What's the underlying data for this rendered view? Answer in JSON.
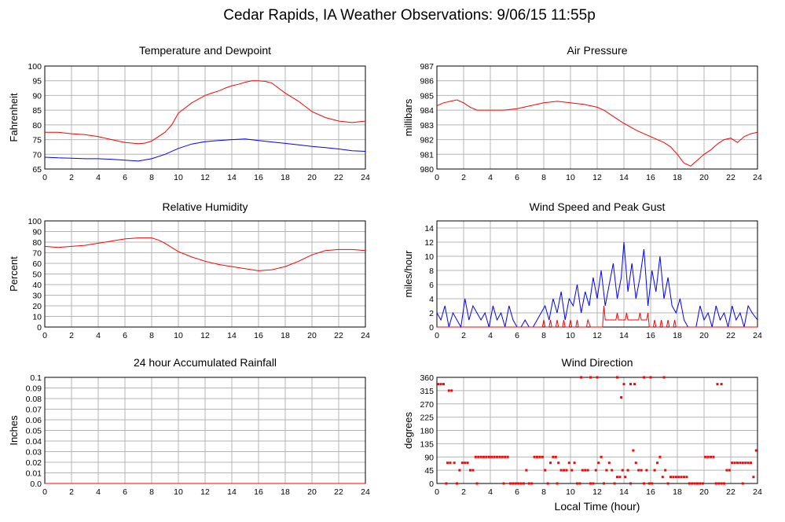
{
  "page": {
    "title": "Cedar Rapids, IA Weather Observations: 9/06/15 11:55p",
    "x_axis_label": "Local Time (hour)"
  },
  "colors": {
    "red": "#ff0000",
    "blue": "#0000ff",
    "grid": "#b4b4b4"
  },
  "chart_data": [
    {
      "id": "temp",
      "type": "line",
      "title": "Temperature and Dewpoint",
      "ylabel": "Fahrenheit",
      "xlim": [
        0,
        24
      ],
      "ylim": [
        65,
        100
      ],
      "xticks": [
        0,
        2,
        4,
        6,
        8,
        10,
        12,
        14,
        16,
        18,
        20,
        22,
        24
      ],
      "yticks": [
        65,
        70,
        75,
        80,
        85,
        90,
        95,
        100
      ],
      "grid": true,
      "series": [
        {
          "color": "#ff0000",
          "x": [
            0,
            1,
            2,
            3,
            4,
            5,
            6,
            7,
            7.5,
            8,
            8.5,
            9,
            9.5,
            10,
            11,
            12,
            12.5,
            13,
            13.5,
            14,
            14.5,
            15,
            15.5,
            16,
            16.5,
            17,
            17.5,
            18,
            19,
            20,
            21,
            22,
            23,
            24
          ],
          "y": [
            77.5,
            77.5,
            77,
            76.7,
            76,
            75,
            74,
            73.6,
            73.8,
            74.5,
            76,
            77.5,
            80,
            84,
            87.5,
            90,
            90.8,
            91.5,
            92.5,
            93.3,
            93.8,
            94.5,
            95,
            95,
            94.8,
            94.2,
            92.5,
            90.8,
            88,
            84.5,
            82.5,
            81.3,
            80.8,
            81.3
          ]
        },
        {
          "color": "#0000ff",
          "x": [
            0,
            1,
            2,
            3,
            4,
            5,
            6,
            7,
            8,
            9,
            10,
            11,
            12,
            13,
            14,
            15,
            16,
            17,
            18,
            19,
            20,
            21,
            22,
            23,
            24
          ],
          "y": [
            69,
            68.8,
            68.7,
            68.5,
            68.5,
            68.3,
            68,
            67.7,
            68.5,
            70,
            72,
            73.5,
            74.3,
            74.7,
            75,
            75.2,
            74.7,
            74.2,
            73.7,
            73.2,
            72.7,
            72.3,
            71.8,
            71.2,
            71
          ]
        }
      ]
    },
    {
      "id": "pressure",
      "type": "line",
      "title": "Air Pressure",
      "ylabel": "millibars",
      "xlim": [
        0,
        24
      ],
      "ylim": [
        980,
        987
      ],
      "xticks": [
        0,
        2,
        4,
        6,
        8,
        10,
        12,
        14,
        16,
        18,
        20,
        22,
        24
      ],
      "yticks": [
        980,
        981,
        982,
        983,
        984,
        985,
        986,
        987
      ],
      "grid": true,
      "series": [
        {
          "color": "#ff0000",
          "x": [
            0,
            0.5,
            1,
            1.5,
            2,
            2.5,
            3,
            3.5,
            4,
            5,
            6,
            7,
            8,
            9,
            10,
            11,
            12,
            12.5,
            13,
            13.5,
            14,
            15,
            16,
            16.5,
            17,
            17.5,
            18,
            18.5,
            19,
            19.5,
            20,
            20.5,
            21,
            21.5,
            22,
            22.5,
            23,
            23.5,
            24
          ],
          "y": [
            984.3,
            984.5,
            984.6,
            984.7,
            984.5,
            984.2,
            984,
            984,
            984,
            984,
            984.1,
            984.3,
            984.5,
            984.6,
            984.5,
            984.4,
            984.2,
            984,
            983.7,
            983.4,
            983.1,
            982.6,
            982.2,
            982,
            981.8,
            981.5,
            981,
            980.4,
            980.2,
            980.6,
            981,
            981.3,
            981.7,
            982,
            982.1,
            981.8,
            982.2,
            982.4,
            982.5
          ]
        }
      ]
    },
    {
      "id": "humidity",
      "type": "line",
      "title": "Relative Humidity",
      "ylabel": "Percent",
      "xlim": [
        0,
        24
      ],
      "ylim": [
        0,
        100
      ],
      "xticks": [
        0,
        2,
        4,
        6,
        8,
        10,
        12,
        14,
        16,
        18,
        20,
        22,
        24
      ],
      "yticks": [
        0,
        10,
        20,
        30,
        40,
        50,
        60,
        70,
        80,
        90,
        100
      ],
      "grid": true,
      "series": [
        {
          "color": "#ff0000",
          "x": [
            0,
            1,
            2,
            3,
            4,
            5,
            6,
            7,
            8,
            8.5,
            9,
            9.5,
            10,
            11,
            12,
            13,
            14,
            15,
            16,
            17,
            18,
            19,
            20,
            21,
            22,
            23,
            24
          ],
          "y": [
            76,
            75,
            76,
            77,
            79,
            81,
            83,
            84,
            84,
            82,
            79,
            75,
            71,
            66,
            62,
            59,
            57,
            55,
            53,
            54,
            57,
            62,
            68,
            72,
            73,
            73,
            72
          ]
        }
      ]
    },
    {
      "id": "wind",
      "type": "line",
      "title": "Wind Speed and Peak Gust",
      "ylabel": "miles/hour",
      "xlim": [
        0,
        24
      ],
      "ylim": [
        0,
        15
      ],
      "xticks": [
        0,
        2,
        4,
        6,
        8,
        10,
        12,
        14,
        16,
        18,
        20,
        22,
        24
      ],
      "yticks": [
        0,
        2,
        4,
        6,
        8,
        10,
        12,
        14
      ],
      "grid": true,
      "series": [
        {
          "color": "#0000ff",
          "x": [
            0,
            0.3,
            0.6,
            0.9,
            1.2,
            1.5,
            1.8,
            2.1,
            2.4,
            2.7,
            3,
            3.3,
            3.6,
            3.9,
            4.2,
            4.5,
            4.8,
            5.1,
            5.4,
            5.7,
            6,
            6.3,
            6.6,
            6.9,
            7.2,
            7.5,
            7.8,
            8.1,
            8.4,
            8.7,
            9,
            9.3,
            9.6,
            9.9,
            10.2,
            10.5,
            10.8,
            11.1,
            11.4,
            11.7,
            12,
            12.3,
            12.6,
            12.9,
            13.2,
            13.5,
            13.8,
            14,
            14.3,
            14.6,
            14.9,
            15.2,
            15.5,
            15.8,
            16.1,
            16.4,
            16.7,
            17,
            17.3,
            17.6,
            17.9,
            18.2,
            18.5,
            18.8,
            19.1,
            19.4,
            19.7,
            20,
            20.3,
            20.6,
            20.9,
            21.2,
            21.5,
            21.8,
            22.1,
            22.4,
            22.7,
            23,
            23.3,
            23.6,
            24
          ],
          "y": [
            2,
            1,
            3,
            0,
            2,
            1,
            0,
            4,
            1,
            3,
            2,
            1,
            2,
            0,
            3,
            1,
            2,
            0,
            3,
            1,
            0,
            0,
            1,
            0,
            0,
            1,
            2,
            3,
            1,
            4,
            2,
            5,
            1,
            4,
            3,
            6,
            2,
            5,
            3,
            7,
            4,
            8,
            3,
            6,
            9,
            4,
            7,
            12,
            5,
            9,
            4,
            7,
            11,
            3,
            8,
            5,
            10,
            4,
            7,
            3,
            2,
            4,
            1,
            0,
            0,
            0,
            3,
            1,
            2,
            0,
            3,
            1,
            2,
            0,
            3,
            1,
            2,
            0,
            3,
            2,
            1
          ]
        },
        {
          "color": "#ff0000",
          "x": [
            0,
            7.9,
            8.0,
            8.1,
            8.4,
            8.5,
            8.6,
            8.9,
            9.0,
            9.1,
            9.4,
            9.5,
            9.6,
            9.9,
            10.0,
            10.1,
            10.4,
            10.5,
            10.6,
            11.2,
            11.3,
            11.5,
            12.4,
            12.5,
            12.6,
            13.4,
            13.5,
            13.6,
            14.1,
            14.2,
            14.3,
            15.1,
            15.2,
            15.3,
            15.7,
            15.8,
            15.9,
            16.2,
            16.3,
            16.4,
            16.7,
            16.8,
            16.9,
            17.2,
            17.3,
            17.4,
            17.7,
            17.8,
            17.9,
            18.1,
            24
          ],
          "y": [
            0,
            0,
            1,
            0,
            0,
            1,
            0,
            0,
            1,
            0,
            0,
            1,
            0,
            0,
            1,
            0,
            0,
            1,
            0,
            0,
            1,
            0,
            0,
            3,
            1,
            1,
            2,
            1,
            1,
            2,
            1,
            1,
            2,
            1,
            1,
            2,
            0,
            0,
            1,
            0,
            0,
            1,
            0,
            0,
            1,
            0,
            0,
            1,
            0,
            0,
            0
          ]
        }
      ]
    },
    {
      "id": "rain",
      "type": "line",
      "title": "24 hour Accumulated Rainfall",
      "ylabel": "Inches",
      "xlim": [
        0,
        24
      ],
      "ylim": [
        0,
        0.1
      ],
      "xticks": [
        0,
        2,
        4,
        6,
        8,
        10,
        12,
        14,
        16,
        18,
        20,
        22,
        24
      ],
      "yticks": [
        0.0,
        0.01,
        0.02,
        0.03,
        0.04,
        0.05,
        0.06,
        0.07,
        0.08,
        0.09,
        0.1
      ],
      "ytick_labels": [
        "0.0",
        "0.01",
        "0.02",
        "0.03",
        "0.04",
        "0.05",
        "0.06",
        "0.07",
        "0.08",
        "0.09",
        "0.1"
      ],
      "grid": true,
      "series": [
        {
          "color": "#ff0000",
          "x": [
            0,
            24
          ],
          "y": [
            0,
            0
          ]
        }
      ]
    },
    {
      "id": "direction",
      "type": "scatter",
      "title": "Wind Direction",
      "ylabel": "degrees",
      "xlim": [
        0,
        24
      ],
      "ylim": [
        0,
        360
      ],
      "xticks": [
        0,
        2,
        4,
        6,
        8,
        10,
        12,
        14,
        16,
        18,
        20,
        22,
        24
      ],
      "yticks": [
        0,
        45,
        90,
        135,
        180,
        225,
        270,
        315,
        360
      ],
      "grid": true,
      "series": [
        {
          "color": "#ff0000",
          "x": [
            0.1,
            0.3,
            0.5,
            0.7,
            0.9,
            1.1,
            0.8,
            1.0,
            1.3,
            1.5,
            1.7,
            1.9,
            2.1,
            2.3,
            2.5,
            2.7,
            2.9,
            3.1,
            3.3,
            3.5,
            3.7,
            3.9,
            4.1,
            4.3,
            4.5,
            4.7,
            4.9,
            5.1,
            5.3,
            5.5,
            5.7,
            5.9,
            6.1,
            6.3,
            6.5,
            6.7,
            6.9,
            7.1,
            7.3,
            7.5,
            7.7,
            7.9,
            8.1,
            8.3,
            8.5,
            8.7,
            8.9,
            9.1,
            9.3,
            9.5,
            9.7,
            9.9,
            10.1,
            10.3,
            10.5,
            10.7,
            10.9,
            11.1,
            11.3,
            11.5,
            11.7,
            11.9,
            12.1,
            12.3,
            12.5,
            12.7,
            12.9,
            13.1,
            13.3,
            13.5,
            13.7,
            13.9,
            14.1,
            14.3,
            14.5,
            14.7,
            14.9,
            15.1,
            15.3,
            15.5,
            15.7,
            15.9,
            16.1,
            16.3,
            16.5,
            16.7,
            16.9,
            17.1,
            17.3,
            17.5,
            17.7,
            17.9,
            18.1,
            18.3,
            18.5,
            18.7,
            18.9,
            19.1,
            19.3,
            19.5,
            19.7,
            19.9,
            20.1,
            20.3,
            20.5,
            20.7,
            20.9,
            21.1,
            21.3,
            21.5,
            21.7,
            21.9,
            22.1,
            22.3,
            22.5,
            22.7,
            22.9,
            23.1,
            23.3,
            23.5,
            23.7,
            23.9,
            10.8,
            11.5,
            12.0,
            13.5,
            14.0,
            15.5,
            16.0,
            17.0,
            21.0,
            21.3,
            14.5,
            14.8,
            13.8,
            22.9,
            3.0,
            5.0,
            9.0
          ],
          "y": [
            337,
            337,
            337,
            0,
            315,
            315,
            70,
            70,
            70,
            0,
            45,
            70,
            70,
            70,
            45,
            45,
            90,
            90,
            90,
            90,
            90,
            90,
            90,
            90,
            90,
            90,
            90,
            90,
            90,
            0,
            0,
            0,
            0,
            0,
            0,
            45,
            0,
            0,
            90,
            90,
            90,
            90,
            45,
            0,
            70,
            90,
            90,
            70,
            45,
            45,
            45,
            70,
            45,
            70,
            0,
            0,
            45,
            45,
            45,
            0,
            0,
            45,
            70,
            90,
            0,
            45,
            70,
            45,
            0,
            22,
            22,
            45,
            22,
            45,
            0,
            112,
            70,
            45,
            45,
            0,
            45,
            0,
            0,
            45,
            70,
            90,
            22,
            45,
            0,
            22,
            22,
            22,
            22,
            22,
            22,
            22,
            0,
            0,
            0,
            0,
            0,
            0,
            90,
            90,
            90,
            90,
            0,
            0,
            0,
            0,
            45,
            45,
            70,
            70,
            70,
            70,
            70,
            70,
            70,
            70,
            22,
            112,
            360,
            360,
            360,
            360,
            337,
            360,
            360,
            360,
            337,
            337,
            337,
            337,
            292,
            0,
            0,
            0,
            0
          ]
        }
      ]
    }
  ]
}
